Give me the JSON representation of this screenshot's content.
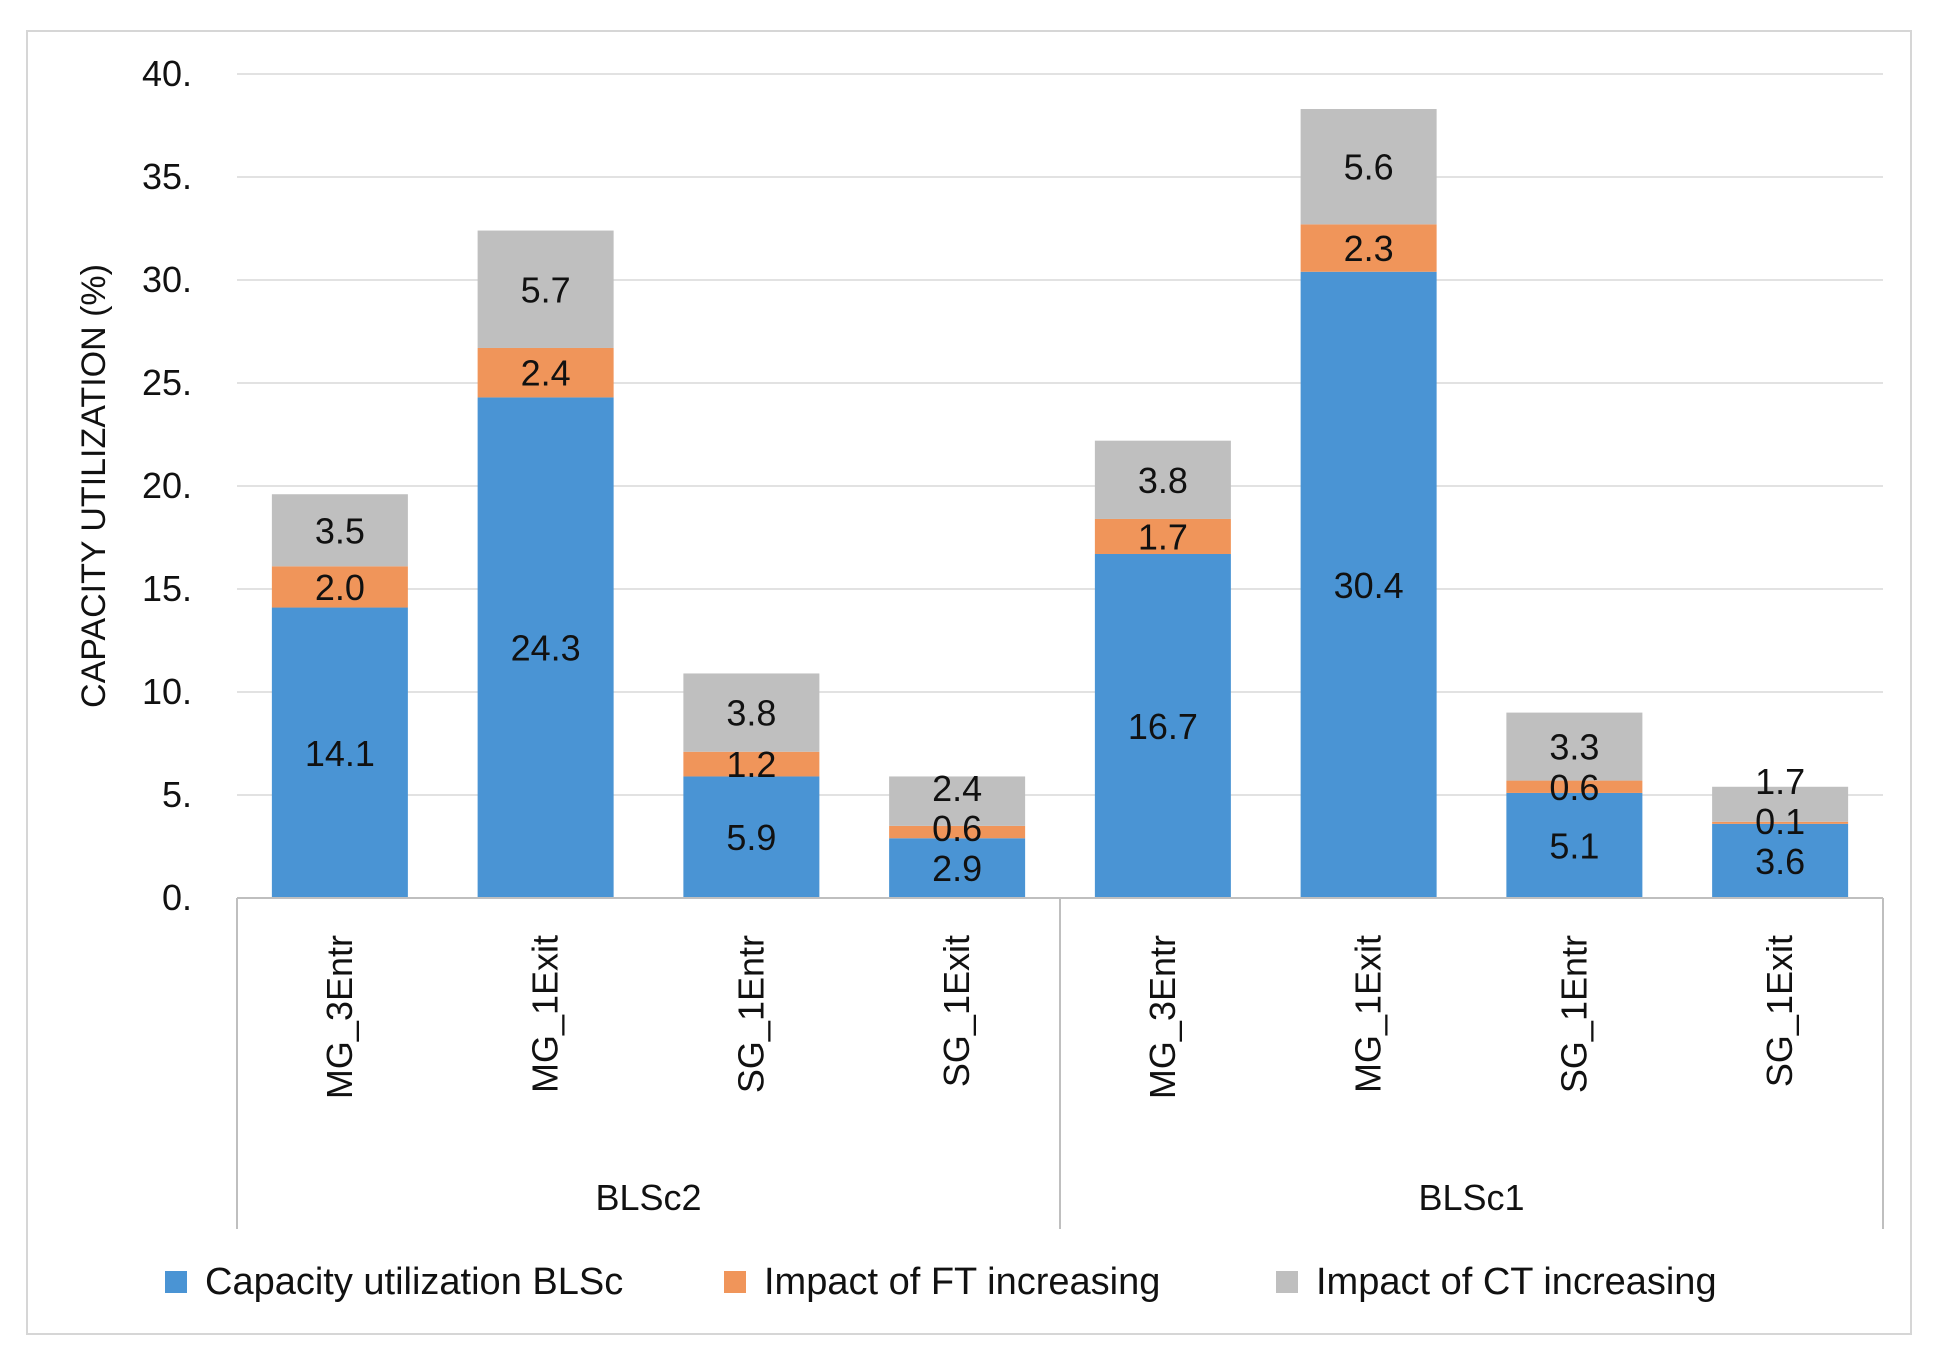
{
  "chart_data": {
    "type": "bar",
    "stacked": true,
    "title": "",
    "xlabel": "",
    "ylabel": "CAPACITY UTILIZATION (%)",
    "ylim": [
      0,
      40
    ],
    "yticks": [
      "0.",
      "5.",
      "10.",
      "15.",
      "20.",
      "25.",
      "30.",
      "35.",
      "40."
    ],
    "grid": true,
    "legend_position": "bottom",
    "groups": [
      {
        "label": "BLSc2",
        "categories": [
          "MG_3Entr",
          "MG_1Exit",
          "SG_1Entr",
          "SG_1Exit"
        ]
      },
      {
        "label": "BLSc1",
        "categories": [
          "MG_3Entr",
          "MG_1Exit",
          "SG_1Entr",
          "SG_1Exit"
        ]
      }
    ],
    "categories": [
      "MG_3Entr",
      "MG_1Exit",
      "SG_1Entr",
      "SG_1Exit",
      "MG_3Entr",
      "MG_1Exit",
      "SG_1Entr",
      "SG_1Exit"
    ],
    "series": [
      {
        "name": "Capacity utilization BLSc",
        "color": "#4a94d4",
        "values": [
          14.1,
          24.3,
          5.9,
          2.9,
          16.7,
          30.4,
          5.1,
          3.6
        ]
      },
      {
        "name": "Impact of FT increasing",
        "color": "#f0955a",
        "values": [
          2.0,
          2.4,
          1.2,
          0.6,
          1.7,
          2.3,
          0.6,
          0.1
        ]
      },
      {
        "name": "Impact of CT increasing",
        "color": "#bfbfbf",
        "values": [
          3.5,
          5.7,
          3.8,
          2.4,
          3.8,
          5.6,
          3.3,
          1.7
        ]
      }
    ]
  }
}
